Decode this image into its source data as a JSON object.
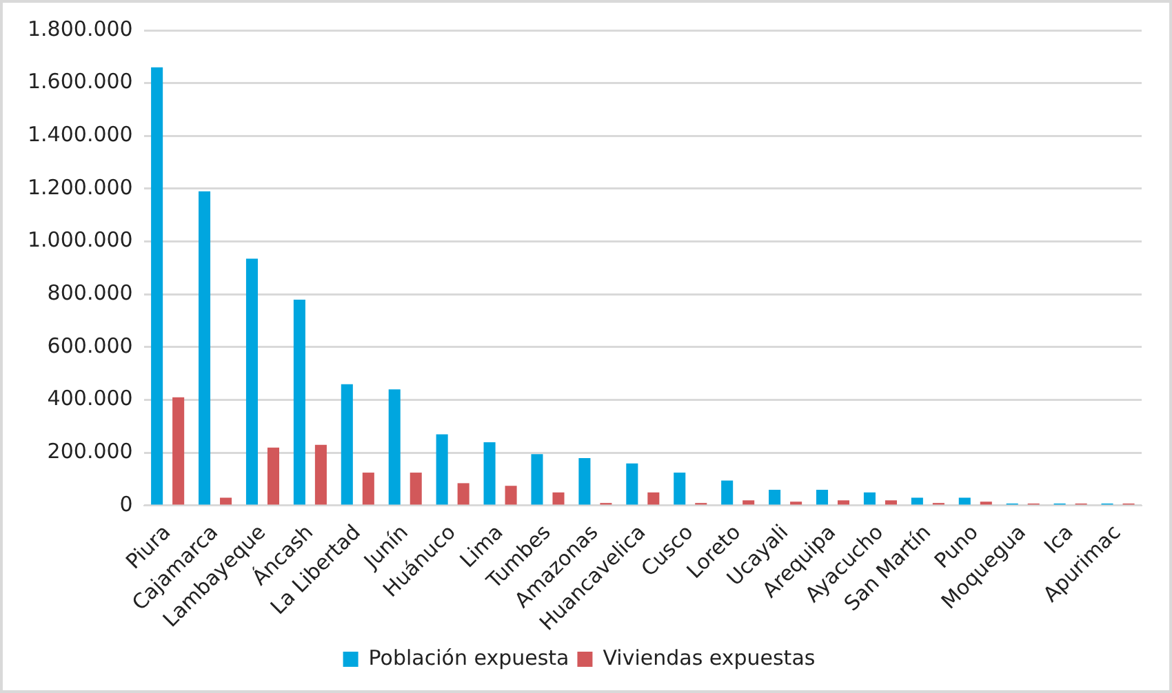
{
  "chart_data": {
    "type": "bar",
    "categories": [
      "Piura",
      "Cajamarca",
      "Lambayeque",
      "Áncash",
      "La Libertad",
      "Junín",
      "Huánuco",
      "Lima",
      "Tumbes",
      "Amazonas",
      "Huancavelica",
      "Cusco",
      "Loreto",
      "Ucayali",
      "Arequipa",
      "Ayacucho",
      "San Martín",
      "Puno",
      "Moquegua",
      "Ica",
      "Apurimac"
    ],
    "series": [
      {
        "name": "Población expuesta",
        "color": "#00a6df",
        "values": [
          1660000,
          1190000,
          935000,
          780000,
          460000,
          440000,
          270000,
          240000,
          195000,
          180000,
          160000,
          125000,
          95000,
          60000,
          60000,
          50000,
          30000,
          30000,
          8000,
          8000,
          8000
        ]
      },
      {
        "name": "Viviendas expuestas",
        "color": "#d2585a",
        "values": [
          410000,
          30000,
          220000,
          230000,
          125000,
          125000,
          85000,
          75000,
          50000,
          10000,
          50000,
          10000,
          20000,
          15000,
          20000,
          20000,
          10000,
          15000,
          8000,
          8000,
          8000
        ]
      }
    ],
    "ylim": [
      0,
      1800000
    ],
    "yticks": [
      {
        "value": 0,
        "label": "0"
      },
      {
        "value": 200000,
        "label": "200.000"
      },
      {
        "value": 400000,
        "label": "400.000"
      },
      {
        "value": 600000,
        "label": "600.000"
      },
      {
        "value": 800000,
        "label": "800.000"
      },
      {
        "value": 1000000,
        "label": "1.000.000"
      },
      {
        "value": 1200000,
        "label": "1.200.000"
      },
      {
        "value": 1400000,
        "label": "1.400.000"
      },
      {
        "value": 1600000,
        "label": "1.600.000"
      },
      {
        "value": 1800000,
        "label": "1.800.000"
      }
    ],
    "grid": "y",
    "legend": "bottom"
  }
}
